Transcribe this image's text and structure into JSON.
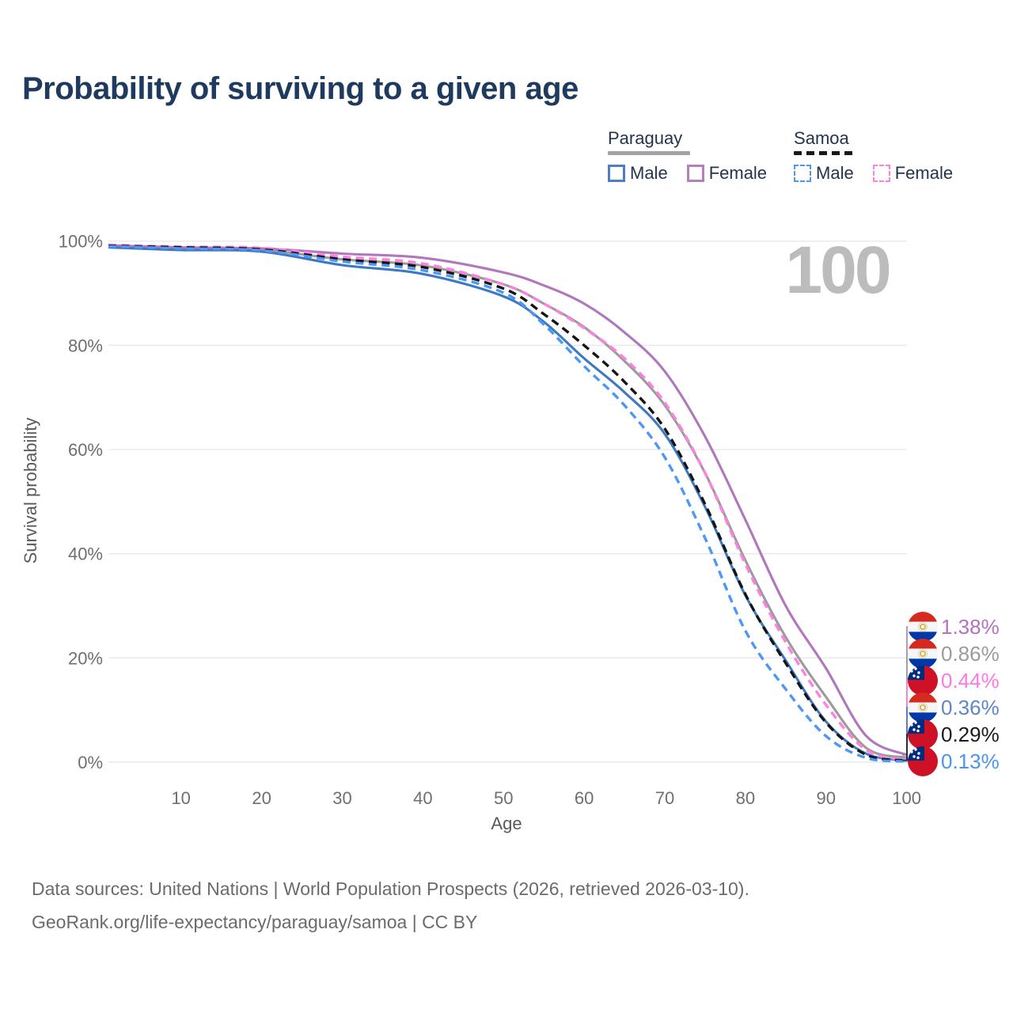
{
  "title": "Probability of surviving to a given age",
  "watermark": "100",
  "legend": {
    "groups": [
      {
        "label": "Paraguay",
        "line_style": "solid",
        "underline_color": "#a3a3a3",
        "items": [
          {
            "label": "Male",
            "color": "#4d7fc0",
            "dashed": false
          },
          {
            "label": "Female",
            "color": "#b57ebd",
            "dashed": false
          }
        ]
      },
      {
        "label": "Samoa",
        "line_style": "dashed",
        "underline_color": "#1a1a1a",
        "items": [
          {
            "label": "Male",
            "color": "#4e97f4",
            "dashed": true
          },
          {
            "label": "Female",
            "color": "#ff80e1",
            "dashed": true
          }
        ]
      }
    ]
  },
  "axes": {
    "x_label": "Age",
    "y_label": "Survival probability",
    "x_ticks": [
      10,
      20,
      30,
      40,
      50,
      60,
      70,
      80,
      90,
      100
    ],
    "y_ticks": [
      0,
      20,
      40,
      60,
      80,
      100
    ],
    "y_tick_suffix": "%"
  },
  "chart_data": {
    "type": "line",
    "title": "Probability of surviving to a given age",
    "xlabel": "Age",
    "ylabel": "Survival probability",
    "xlim": [
      1,
      100
    ],
    "ylim": [
      0,
      100
    ],
    "grid": "horizontal",
    "legend_position": "top-right",
    "x": [
      1,
      10,
      20,
      30,
      40,
      50,
      55,
      60,
      65,
      70,
      75,
      80,
      85,
      90,
      95,
      100
    ],
    "series": [
      {
        "name": "Paraguay Female",
        "country": "Paraguay",
        "sex": "Female",
        "color": "#b077bc",
        "dashed": false,
        "values": [
          99.2,
          98.8,
          98.6,
          97.6,
          96.8,
          94.0,
          91.5,
          88.0,
          82.5,
          75.0,
          62.5,
          46.5,
          30.0,
          18.0,
          5.0,
          1.38
        ]
      },
      {
        "name": "Paraguay Both sexes",
        "country": "Paraguay",
        "sex": "Both",
        "color": "#9b9b9b",
        "dashed": false,
        "values": [
          99.0,
          98.6,
          98.3,
          96.5,
          95.3,
          91.7,
          88.0,
          83.5,
          77.0,
          68.5,
          55.5,
          38.7,
          24.0,
          12.5,
          2.7,
          0.86
        ]
      },
      {
        "name": "Samoa Female",
        "country": "Samoa",
        "sex": "Female",
        "color": "#ff80e1",
        "dashed": true,
        "values": [
          99.3,
          98.9,
          98.7,
          97.0,
          95.7,
          91.7,
          88.0,
          83.3,
          77.5,
          69.0,
          55.5,
          38.0,
          23.0,
          11.0,
          2.3,
          0.44
        ]
      },
      {
        "name": "Paraguay Male",
        "country": "Paraguay",
        "sex": "Male",
        "color": "#3d79c2",
        "dashed": false,
        "values": [
          98.8,
          98.3,
          98.0,
          95.4,
          93.7,
          89.4,
          84.5,
          77.5,
          71.0,
          63.0,
          49.0,
          32.0,
          19.5,
          7.8,
          1.6,
          0.36
        ]
      },
      {
        "name": "Samoa Both sexes",
        "country": "Samoa",
        "sex": "Both",
        "color": "#151515",
        "dashed": true,
        "values": [
          99.1,
          98.8,
          98.4,
          96.5,
          95.0,
          90.9,
          86.0,
          80.0,
          73.0,
          64.0,
          49.5,
          32.2,
          19.0,
          7.6,
          1.4,
          0.29
        ]
      },
      {
        "name": "Samoa Male",
        "country": "Samoa",
        "sex": "Male",
        "color": "#4e97f4",
        "dashed": true,
        "values": [
          99.0,
          98.6,
          98.2,
          96.1,
          94.4,
          90.1,
          84.0,
          76.0,
          68.5,
          58.5,
          43.0,
          25.2,
          14.0,
          5.0,
          0.8,
          0.13
        ]
      }
    ],
    "end_labels": [
      {
        "text": "1.38%",
        "color": "#b273bd",
        "flag": "paraguay",
        "series": 0
      },
      {
        "text": "0.86%",
        "color": "#9b9b9b",
        "flag": "paraguay",
        "series": 1
      },
      {
        "text": "0.44%",
        "color": "#ff77e4",
        "flag": "samoa",
        "series": 2
      },
      {
        "text": "0.36%",
        "color": "#5b87c8",
        "flag": "paraguay",
        "series": 3
      },
      {
        "text": "0.29%",
        "color": "#1a1a1a",
        "flag": "samoa",
        "series": 4
      },
      {
        "text": "0.13%",
        "color": "#4a95f2",
        "flag": "samoa",
        "series": 5
      }
    ]
  },
  "footer": {
    "line1": "Data sources: United Nations | World Population Prospects (2026, retrieved 2026-03-10).",
    "line2": "GeoRank.org/life-expectancy/paraguay/samoa | CC BY"
  }
}
